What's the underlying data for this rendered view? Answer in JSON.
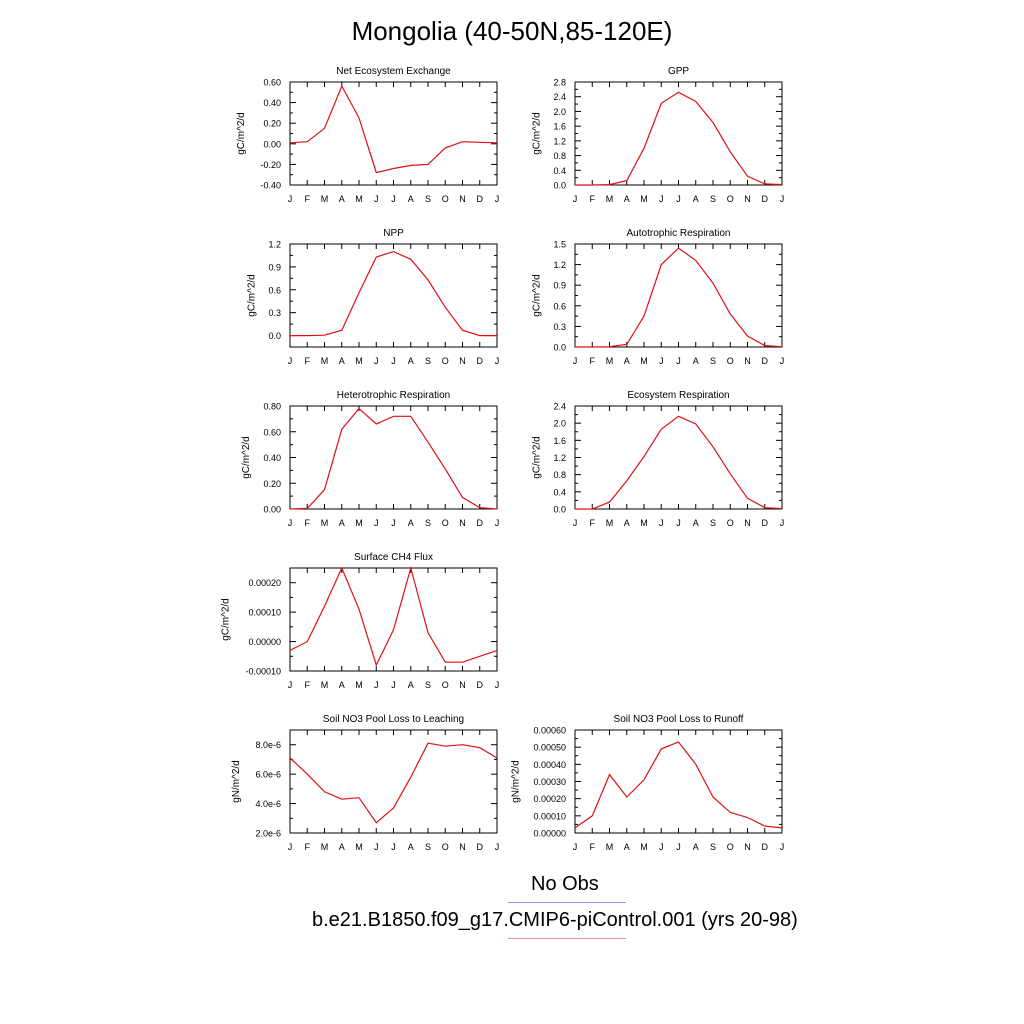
{
  "title": "Mongolia (40-50N,85-120E)",
  "legend": [
    {
      "label": "No Obs",
      "color": "#8c96f0"
    },
    {
      "label": "b.e21.B1850.f09_g17.CMIP6-piControl.001 (yrs 20-98)",
      "color": "#f08c8c"
    }
  ],
  "series_color": "#e01010",
  "chart_data": [
    {
      "type": "line",
      "title": "Net Ecosystem Exchange",
      "xlabel": "",
      "ylabel": "gC/m^2/d",
      "categories": [
        "J",
        "F",
        "M",
        "A",
        "M",
        "J",
        "J",
        "A",
        "S",
        "O",
        "N",
        "D",
        "J"
      ],
      "ylim": [
        -0.4,
        0.6
      ],
      "yticks": [
        -0.4,
        -0.2,
        0.0,
        0.2,
        0.4,
        0.6
      ],
      "ytick_labels": [
        "-0.40",
        "-0.20",
        "0.00",
        "0.20",
        "0.40",
        "0.60"
      ],
      "values": [
        0.01,
        0.02,
        0.15,
        0.56,
        0.25,
        -0.28,
        -0.24,
        -0.21,
        -0.2,
        -0.04,
        0.02,
        0.015,
        0.01
      ]
    },
    {
      "type": "line",
      "title": "GPP",
      "xlabel": "",
      "ylabel": "gC/m^2/d",
      "categories": [
        "J",
        "F",
        "M",
        "A",
        "M",
        "J",
        "J",
        "A",
        "S",
        "O",
        "N",
        "D",
        "J"
      ],
      "ylim": [
        0.0,
        2.8
      ],
      "yticks": [
        0.0,
        0.4,
        0.8,
        1.2,
        1.6,
        2.0,
        2.4,
        2.8
      ],
      "ytick_labels": [
        "0.0",
        "0.4",
        "0.8",
        "1.2",
        "1.6",
        "2.0",
        "2.4",
        "2.8"
      ],
      "values": [
        0.0,
        0.0,
        0.01,
        0.12,
        1.0,
        2.22,
        2.52,
        2.27,
        1.7,
        0.9,
        0.24,
        0.03,
        0.01
      ]
    },
    {
      "type": "line",
      "title": "NPP",
      "xlabel": "",
      "ylabel": "gC/m^2/d",
      "categories": [
        "J",
        "F",
        "M",
        "A",
        "M",
        "J",
        "J",
        "A",
        "S",
        "O",
        "N",
        "D",
        "J"
      ],
      "ylim": [
        -0.15,
        1.2
      ],
      "yticks": [
        0.0,
        0.3,
        0.6,
        0.9,
        1.2
      ],
      "ytick_labels": [
        "0.0",
        "0.3",
        "0.6",
        "0.9",
        "1.2"
      ],
      "values": [
        0.0,
        0.0,
        0.005,
        0.07,
        0.56,
        1.03,
        1.1,
        1.0,
        0.73,
        0.37,
        0.07,
        0.0,
        0.0
      ]
    },
    {
      "type": "line",
      "title": "Autotrophic Respiration",
      "xlabel": "",
      "ylabel": "gC/m^2/d",
      "categories": [
        "J",
        "F",
        "M",
        "A",
        "M",
        "J",
        "J",
        "A",
        "S",
        "O",
        "N",
        "D",
        "J"
      ],
      "ylim": [
        0.0,
        1.5
      ],
      "yticks": [
        0.0,
        0.3,
        0.6,
        0.9,
        1.2,
        1.5
      ],
      "ytick_labels": [
        "0.0",
        "0.3",
        "0.6",
        "0.9",
        "1.2",
        "1.5"
      ],
      "values": [
        0.0,
        0.0,
        0.005,
        0.04,
        0.45,
        1.2,
        1.44,
        1.26,
        0.93,
        0.48,
        0.16,
        0.02,
        0.005
      ]
    },
    {
      "type": "line",
      "title": "Heterotrophic Respiration",
      "xlabel": "",
      "ylabel": "gC/m^2/d",
      "categories": [
        "J",
        "F",
        "M",
        "A",
        "M",
        "J",
        "J",
        "A",
        "S",
        "O",
        "N",
        "D",
        "J"
      ],
      "ylim": [
        0.0,
        0.8
      ],
      "yticks": [
        0.0,
        0.2,
        0.4,
        0.6,
        0.8
      ],
      "ytick_labels": [
        "0.00",
        "0.20",
        "0.40",
        "0.60",
        "0.80"
      ],
      "values": [
        0.0,
        0.005,
        0.15,
        0.62,
        0.78,
        0.66,
        0.72,
        0.72,
        0.52,
        0.31,
        0.09,
        0.01,
        0.0
      ]
    },
    {
      "type": "line",
      "title": "Ecosystem Respiration",
      "xlabel": "",
      "ylabel": "gC/m^2/d",
      "categories": [
        "J",
        "F",
        "M",
        "A",
        "M",
        "J",
        "J",
        "A",
        "S",
        "O",
        "N",
        "D",
        "J"
      ],
      "ylim": [
        0.0,
        2.4
      ],
      "yticks": [
        0.0,
        0.4,
        0.8,
        1.2,
        1.6,
        2.0,
        2.4
      ],
      "ytick_labels": [
        "0.0",
        "0.4",
        "0.8",
        "1.2",
        "1.6",
        "2.0",
        "2.4"
      ],
      "values": [
        0.0,
        0.0,
        0.16,
        0.66,
        1.22,
        1.86,
        2.16,
        1.98,
        1.45,
        0.82,
        0.25,
        0.03,
        0.01
      ]
    },
    {
      "type": "line",
      "title": "Surface CH4 Flux",
      "xlabel": "",
      "ylabel": "gC/m^2/d",
      "categories": [
        "J",
        "F",
        "M",
        "A",
        "M",
        "J",
        "J",
        "A",
        "S",
        "O",
        "N",
        "D",
        "J"
      ],
      "ylim": [
        -0.0001,
        0.00025
      ],
      "yticks": [
        -0.0001,
        0.0,
        0.0001,
        0.0002
      ],
      "ytick_labels": [
        "-0.00010",
        "0.00000",
        "0.00010",
        "0.00020"
      ],
      "values": [
        -3e-05,
        0.0,
        0.00012,
        0.00025,
        0.00011,
        -8e-05,
        4e-05,
        0.00025,
        3e-05,
        -7e-05,
        -7e-05,
        -5e-05,
        -3e-05
      ]
    },
    {
      "type": "line",
      "title": "Soil NO3 Pool Loss to Leaching",
      "xlabel": "",
      "ylabel": "gN/m^2/d",
      "categories": [
        "J",
        "F",
        "M",
        "A",
        "M",
        "J",
        "J",
        "A",
        "S",
        "O",
        "N",
        "D",
        "J"
      ],
      "ylim": [
        2e-06,
        9e-06
      ],
      "yticks": [
        2e-06,
        4e-06,
        6e-06,
        8e-06
      ],
      "ytick_labels": [
        "2.0e-6",
        "4.0e-6",
        "6.0e-6",
        "8.0e-6"
      ],
      "values": [
        7.1e-06,
        6e-06,
        4.8e-06,
        4.3e-06,
        4.4e-06,
        2.7e-06,
        3.7e-06,
        5.8e-06,
        8.1e-06,
        7.9e-06,
        8e-06,
        7.8e-06,
        7.1e-06
      ]
    },
    {
      "type": "line",
      "title": "Soil NO3 Pool Loss to Runoff",
      "xlabel": "",
      "ylabel": "gN/m^2/d",
      "categories": [
        "J",
        "F",
        "M",
        "A",
        "M",
        "J",
        "J",
        "A",
        "S",
        "O",
        "N",
        "D",
        "J"
      ],
      "ylim": [
        0.0,
        0.0006
      ],
      "yticks": [
        0.0,
        0.0001,
        0.0002,
        0.0003,
        0.0004,
        0.0005,
        0.0006
      ],
      "ytick_labels": [
        "0.00000",
        "0.00010",
        "0.00020",
        "0.00030",
        "0.00040",
        "0.00050",
        "0.00060"
      ],
      "values": [
        3e-05,
        0.0001,
        0.00034,
        0.00021,
        0.00031,
        0.00049,
        0.00053,
        0.0004,
        0.00021,
        0.00012,
        9e-05,
        4e-05,
        3e-05
      ]
    }
  ]
}
